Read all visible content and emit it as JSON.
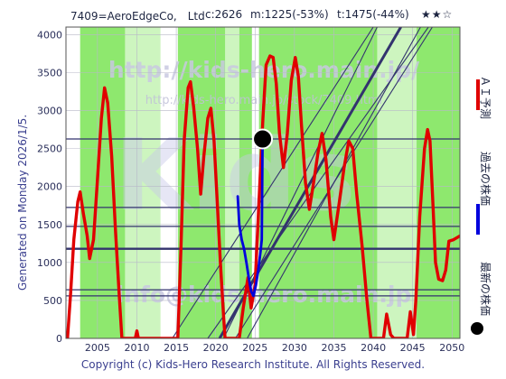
{
  "header": {
    "title": "7409=AeroEdgeCo,　Ltd",
    "current": "c:2626",
    "max_stat": "m:1225(-53%)",
    "target_stat": "t:1475(-44%)",
    "stars": "★★☆"
  },
  "side_text": "Generated on Monday 2026/1/5.",
  "footer": "Copyright (c) Kids-Hero Research Institute. All Rights Reserved.",
  "watermarks": {
    "url_top": "http://kids-hero.main.jp/",
    "url_small": "http://kids-hero.main.jp/stock/7409.html",
    "url_bottom": "info@kids-hero.main.jp",
    "logo": "Kids"
  },
  "legend": {
    "ai_forecast": "ＡＩ予測",
    "past_price": "過去の株価",
    "latest_price": "最新の株価"
  },
  "colors": {
    "ai_forecast": "#e00000",
    "past_price": "#0000dd",
    "latest_marker": "#000000",
    "band_green": "#8ee86e",
    "band_light_green": "#cdf5bf",
    "reference_lines": "#33336e"
  },
  "chart_data": {
    "type": "line",
    "xlim": [
      2001,
      2051
    ],
    "ylim": [
      0,
      4100
    ],
    "x_ticks": [
      2005,
      2010,
      2015,
      2020,
      2025,
      2030,
      2035,
      2040,
      2045,
      2050
    ],
    "y_ticks": [
      0,
      500,
      1000,
      1500,
      2000,
      2500,
      3000,
      3500,
      4000
    ],
    "horizontal_lines": [
      2626,
      1725,
      1475,
      1180,
      640,
      560
    ],
    "diagonal_lines": [
      [
        [
          2014.5,
          0
        ],
        [
          2040.0,
          4100
        ]
      ],
      [
        [
          2020.5,
          0
        ],
        [
          2043.5,
          4100
        ]
      ],
      [
        [
          2019.0,
          0
        ],
        [
          2047.0,
          4100
        ]
      ],
      [
        [
          2024.0,
          0
        ],
        [
          2046.0,
          4100
        ]
      ],
      [
        [
          2021.0,
          0
        ],
        [
          2040.5,
          4100
        ]
      ],
      [
        [
          2022.5,
          0
        ],
        [
          2047.5,
          4100
        ]
      ]
    ],
    "series": [
      {
        "role": "ai_forecast",
        "points": [
          [
            2001.2,
            0
          ],
          [
            2001.6,
            600
          ],
          [
            2002.0,
            1300
          ],
          [
            2002.5,
            1800
          ],
          [
            2002.8,
            1930
          ],
          [
            2003.2,
            1650
          ],
          [
            2003.7,
            1350
          ],
          [
            2004.0,
            1050
          ],
          [
            2004.5,
            1300
          ],
          [
            2005.0,
            2100
          ],
          [
            2005.5,
            2900
          ],
          [
            2005.9,
            3300
          ],
          [
            2006.3,
            3100
          ],
          [
            2006.8,
            2400
          ],
          [
            2007.3,
            1400
          ],
          [
            2007.8,
            500
          ],
          [
            2008.1,
            0
          ],
          [
            2009.8,
            0
          ],
          [
            2010.0,
            100
          ],
          [
            2010.2,
            0
          ],
          [
            2015.2,
            0
          ],
          [
            2015.6,
            1200
          ],
          [
            2016.0,
            2600
          ],
          [
            2016.5,
            3300
          ],
          [
            2016.8,
            3380
          ],
          [
            2017.2,
            3050
          ],
          [
            2017.7,
            2500
          ],
          [
            2018.1,
            1900
          ],
          [
            2018.5,
            2400
          ],
          [
            2019.0,
            2900
          ],
          [
            2019.4,
            3030
          ],
          [
            2019.8,
            2600
          ],
          [
            2020.2,
            1800
          ],
          [
            2020.6,
            1000
          ],
          [
            2021.0,
            300
          ],
          [
            2021.2,
            0
          ],
          [
            2023.0,
            0
          ],
          [
            2023.5,
            400
          ],
          [
            2024.1,
            800
          ],
          [
            2024.5,
            400
          ],
          [
            2025.0,
            700
          ],
          [
            2025.5,
            1800
          ],
          [
            2026.0,
            2900
          ],
          [
            2026.4,
            3600
          ],
          [
            2026.9,
            3720
          ],
          [
            2027.3,
            3700
          ],
          [
            2027.7,
            3350
          ],
          [
            2028.1,
            2700
          ],
          [
            2028.6,
            2250
          ],
          [
            2029.1,
            2700
          ],
          [
            2029.6,
            3400
          ],
          [
            2030.1,
            3700
          ],
          [
            2030.5,
            3450
          ],
          [
            2030.9,
            2800
          ],
          [
            2031.4,
            2050
          ],
          [
            2031.9,
            1700
          ],
          [
            2032.5,
            2100
          ],
          [
            2033.0,
            2450
          ],
          [
            2033.5,
            2700
          ],
          [
            2034.0,
            2350
          ],
          [
            2034.6,
            1600
          ],
          [
            2035.0,
            1300
          ],
          [
            2035.7,
            1800
          ],
          [
            2036.3,
            2250
          ],
          [
            2036.9,
            2600
          ],
          [
            2037.4,
            2500
          ],
          [
            2037.9,
            1900
          ],
          [
            2038.6,
            1200
          ],
          [
            2039.2,
            500
          ],
          [
            2039.7,
            0
          ],
          [
            2041.3,
            0
          ],
          [
            2041.7,
            320
          ],
          [
            2042.2,
            50
          ],
          [
            2042.6,
            0
          ],
          [
            2044.3,
            0
          ],
          [
            2044.7,
            350
          ],
          [
            2045.1,
            50
          ],
          [
            2045.4,
            500
          ],
          [
            2045.9,
            1600
          ],
          [
            2046.5,
            2500
          ],
          [
            2046.9,
            2750
          ],
          [
            2047.2,
            2600
          ],
          [
            2047.6,
            1700
          ],
          [
            2047.9,
            1000
          ],
          [
            2048.3,
            780
          ],
          [
            2048.8,
            760
          ],
          [
            2049.2,
            900
          ],
          [
            2049.6,
            1280
          ],
          [
            2050.2,
            1300
          ],
          [
            2051.0,
            1350
          ]
        ]
      },
      {
        "role": "past_price",
        "points": [
          [
            2022.8,
            1870
          ],
          [
            2023.0,
            1500
          ],
          [
            2023.3,
            1300
          ],
          [
            2023.6,
            1180
          ],
          [
            2023.9,
            1000
          ],
          [
            2024.2,
            800
          ],
          [
            2024.5,
            620
          ],
          [
            2024.8,
            560
          ],
          [
            2025.1,
            700
          ],
          [
            2025.4,
            900
          ],
          [
            2025.7,
            1150
          ],
          [
            2025.85,
            1300
          ],
          [
            2025.95,
            2626
          ]
        ]
      }
    ],
    "latest_point": {
      "x": 2025.95,
      "y": 2626
    },
    "green_bands": [
      [
        2002.8,
        2008.5
      ],
      [
        2015.2,
        2021.2
      ],
      [
        2023.0,
        2024.6
      ],
      [
        2025.5,
        2040.5
      ],
      [
        2045.5,
        2051.0
      ]
    ],
    "light_green_bands": [
      [
        2008.5,
        2013.0
      ],
      [
        2021.2,
        2023.0
      ],
      [
        2040.5,
        2045.5
      ]
    ]
  }
}
